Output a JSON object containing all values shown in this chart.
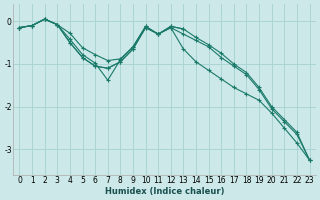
{
  "xlabel": "Humidex (Indice chaleur)",
  "ylabel": "",
  "background_color": "#cce8e8",
  "grid_color": "#aad4d4",
  "line_color": "#1a7a6a",
  "xlim": [
    -0.5,
    23.5
  ],
  "ylim": [
    -3.6,
    0.4
  ],
  "yticks": [
    0,
    -1,
    -2,
    -3
  ],
  "xticks": [
    0,
    1,
    2,
    3,
    4,
    5,
    6,
    7,
    8,
    9,
    10,
    11,
    12,
    13,
    14,
    15,
    16,
    17,
    18,
    19,
    20,
    21,
    22,
    23
  ],
  "series": [
    [
      -0.15,
      -0.1,
      0.05,
      -0.08,
      -0.5,
      -0.85,
      -1.05,
      -1.1,
      -0.95,
      -0.65,
      -0.15,
      -0.3,
      -0.15,
      -0.3,
      -0.45,
      -0.6,
      -0.85,
      -1.05,
      -1.25,
      -1.6,
      -2.05,
      -2.35,
      -2.65,
      -3.25
    ],
    [
      -0.15,
      -0.1,
      0.05,
      -0.08,
      -0.5,
      -0.85,
      -1.05,
      -1.1,
      -0.95,
      -0.65,
      -0.15,
      -0.3,
      -0.15,
      -0.65,
      -0.95,
      -1.15,
      -1.35,
      -1.55,
      -1.7,
      -1.85,
      -2.15,
      -2.5,
      -2.85,
      -3.25
    ],
    [
      -0.15,
      -0.1,
      0.05,
      -0.08,
      -0.28,
      -0.62,
      -0.78,
      -0.92,
      -0.88,
      -0.6,
      -0.12,
      -0.3,
      -0.12,
      -0.18,
      -0.38,
      -0.55,
      -0.75,
      -1.0,
      -1.2,
      -1.55,
      -2.0,
      -2.3,
      -2.6,
      -3.25
    ],
    [
      -0.15,
      -0.1,
      0.05,
      -0.08,
      -0.42,
      -0.78,
      -0.98,
      -1.38,
      -0.9,
      -0.6,
      -0.12,
      -0.3,
      -0.12,
      -0.18,
      null,
      null,
      null,
      null,
      null,
      null,
      null,
      null,
      null,
      null
    ]
  ]
}
